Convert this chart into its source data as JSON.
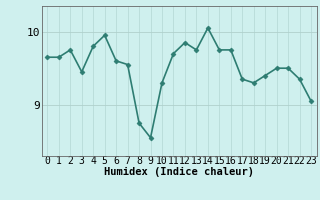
{
  "x": [
    0,
    1,
    2,
    3,
    4,
    5,
    6,
    7,
    8,
    9,
    10,
    11,
    12,
    13,
    14,
    15,
    16,
    17,
    18,
    19,
    20,
    21,
    22,
    23
  ],
  "y": [
    9.65,
    9.65,
    9.75,
    9.45,
    9.8,
    9.95,
    9.6,
    9.55,
    8.75,
    8.55,
    9.3,
    9.7,
    9.85,
    9.75,
    10.05,
    9.75,
    9.75,
    9.35,
    9.3,
    9.4,
    9.5,
    9.5,
    9.35,
    9.05
  ],
  "line_color": "#2e7d72",
  "marker": "D",
  "marker_size": 2.5,
  "bg_color": "#cff0ee",
  "grid_color_x": "#b8dbd8",
  "grid_color_y": "#b0d0cc",
  "xlabel": "Humidex (Indice chaleur)",
  "yticks": [
    9,
    10
  ],
  "ylim": [
    8.3,
    10.35
  ],
  "xlim": [
    -0.5,
    23.5
  ],
  "xlabel_fontsize": 7.5,
  "tick_fontsize": 7,
  "line_width": 1.2,
  "spine_color": "#666666"
}
